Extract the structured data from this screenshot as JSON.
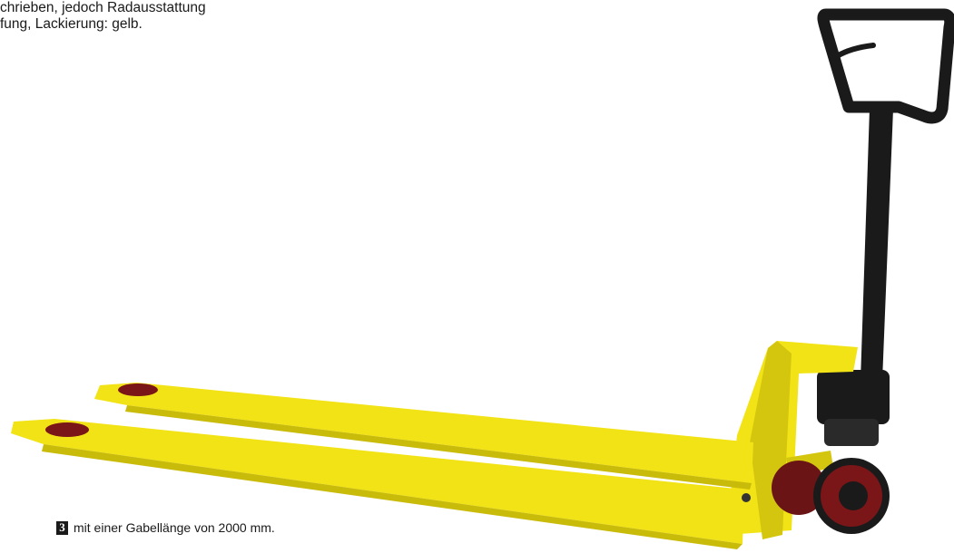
{
  "description_text": {
    "lines": [
      "chrieben, jedoch Radausstattung",
      "fung, Lackierung: gelb."
    ]
  },
  "caption": {
    "number": "3",
    "text": "mit einer Gabellänge von 2000 mm."
  },
  "colors": {
    "paint_yellow": "#f2e316",
    "frame_black": "#1a1a1a",
    "wheel_red": "#7a1618",
    "text": "#1a1a1a",
    "background": "#ffffff"
  },
  "image": {
    "subject": "pallet-truck"
  }
}
